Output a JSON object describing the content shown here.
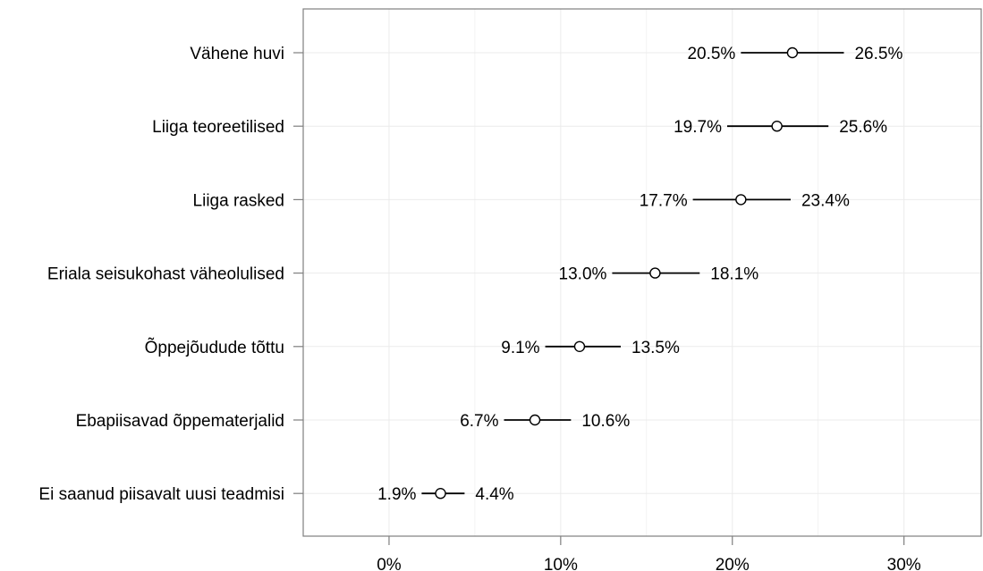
{
  "chart_data": {
    "type": "dot-interval",
    "title": "",
    "xlabel": "",
    "ylabel": "",
    "xlim": [
      -5,
      34.5
    ],
    "grid": true,
    "categories": [
      "Vähene huvi",
      "Liiga teoreetilised",
      "Liiga rasked",
      "Eriala seisukohast väheolulised",
      "Õppejõudude tõttu",
      "Ebapiisavad õppematerjalid",
      "Ei saanud piisavalt uusi teadmisi"
    ],
    "point": [
      23.5,
      22.6,
      20.5,
      15.5,
      11.1,
      8.5,
      3.0
    ],
    "lower": [
      20.5,
      19.7,
      17.7,
      13.0,
      9.1,
      6.7,
      1.9
    ],
    "upper": [
      26.5,
      25.6,
      23.4,
      18.1,
      13.5,
      10.6,
      4.4
    ],
    "lower_labels": [
      "20.5%",
      "19.7%",
      "17.7%",
      "13.0%",
      "9.1%",
      "6.7%",
      "1.9%"
    ],
    "upper_labels": [
      "26.5%",
      "25.6%",
      "23.4%",
      "18.1%",
      "13.5%",
      "10.6%",
      "4.4%"
    ],
    "x_ticks": [
      0,
      10,
      20,
      30
    ],
    "x_tick_labels": [
      "0%",
      "10%",
      "20%",
      "30%"
    ],
    "colors": {
      "panel_border": "#7f7f7f",
      "grid": "#ebebeb",
      "line": "#000000",
      "point_fill": "#ffffff"
    }
  }
}
